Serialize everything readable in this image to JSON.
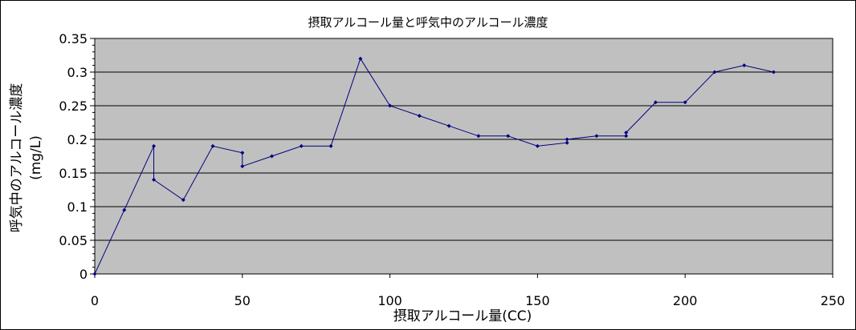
{
  "chart_data": {
    "type": "line",
    "title": "摂取アルコール量と呼気中のアルコール濃度",
    "xlabel": "摂取アルコール量(CC)",
    "ylabel": "呼気中のアルコール濃度",
    "ylabel_unit": "(mg/L)",
    "xlim": [
      0,
      250
    ],
    "ylim": [
      0,
      0.35
    ],
    "x_ticks": [
      0,
      50,
      100,
      150,
      200,
      250
    ],
    "x_tick_labels": [
      "0",
      "50",
      "100",
      "150",
      "200",
      "250"
    ],
    "y_ticks": [
      0,
      0.05,
      0.1,
      0.15,
      0.2,
      0.25,
      0.3,
      0.35
    ],
    "y_tick_labels": [
      "0",
      "0.05",
      "0.1",
      "0.15",
      "0.2",
      "0.25",
      "0.3",
      "0.35"
    ],
    "grid": "horizontal",
    "legend": "none",
    "colors": {
      "plot_background": "#c0c0c0",
      "series_line": "#000080",
      "gridline": "#000000",
      "frame": "#000000"
    },
    "series": [
      {
        "x": [
          0,
          10,
          20,
          20,
          30,
          40,
          50,
          50,
          60,
          70,
          80,
          90,
          100,
          110,
          120,
          130,
          140,
          150,
          160,
          160,
          170,
          180,
          180,
          190,
          200,
          210,
          220,
          230
        ],
        "y": [
          0,
          0.095,
          0.19,
          0.14,
          0.11,
          0.19,
          0.18,
          0.16,
          0.175,
          0.19,
          0.19,
          0.32,
          0.25,
          0.235,
          0.22,
          0.205,
          0.205,
          0.19,
          0.195,
          0.2,
          0.205,
          0.205,
          0.21,
          0.255,
          0.255,
          0.3,
          0.31,
          0.3
        ]
      }
    ]
  }
}
